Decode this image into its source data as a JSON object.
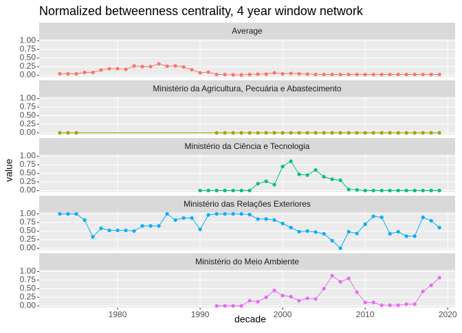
{
  "chart_data": {
    "type": "line",
    "title": "Normalized betweenness centrality, 4 year window network",
    "x_label": "decade",
    "y_label": "value",
    "xlim": [
      1970.5,
      2020.9
    ],
    "xticks": [
      1980,
      1990,
      2000,
      2010,
      2020
    ],
    "ylim": [
      -0.05,
      1.05
    ],
    "yticks": [
      {
        "value": 0,
        "label": "0.00"
      },
      {
        "value": 0.25,
        "label": "0.25"
      },
      {
        "value": 0.5,
        "label": "0.50"
      },
      {
        "value": 0.75,
        "label": "0.75"
      },
      {
        "value": 1,
        "label": "1.00"
      }
    ],
    "grid": true,
    "series": [
      {
        "name": "Average",
        "color": "#F8766D",
        "x": [
          1973,
          1974,
          1975,
          1976,
          1977,
          1978,
          1979,
          1980,
          1981,
          1982,
          1983,
          1984,
          1985,
          1986,
          1987,
          1988,
          1989,
          1990,
          1991,
          1992,
          1993,
          1994,
          1995,
          1996,
          1997,
          1998,
          1999,
          2000,
          2001,
          2002,
          2003,
          2004,
          2005,
          2006,
          2007,
          2008,
          2009,
          2010,
          2011,
          2012,
          2013,
          2014,
          2015,
          2016,
          2017,
          2018,
          2019
        ],
        "values": [
          0.04,
          0.04,
          0.04,
          0.08,
          0.08,
          0.15,
          0.19,
          0.19,
          0.17,
          0.27,
          0.25,
          0.25,
          0.33,
          0.26,
          0.27,
          0.24,
          0.16,
          0.07,
          0.09,
          0.02,
          0.02,
          0.01,
          0.01,
          0.02,
          0.03,
          0.03,
          0.07,
          0.04,
          0.05,
          0.04,
          0.03,
          0.02,
          0.02,
          0.02,
          0.02,
          0.02,
          0.02,
          0.02,
          0.02,
          0.02,
          0.02,
          0.02,
          0.02,
          0.02,
          0.02,
          0.02,
          0.02
        ]
      },
      {
        "name": "Ministério da Agricultura, Pecuária e Abastecimento",
        "color": "#A3A500",
        "x": [
          1973,
          1974,
          1975,
          1992,
          1993,
          1994,
          1995,
          1996,
          1997,
          1998,
          1999,
          2000,
          2001,
          2002,
          2003,
          2004,
          2005,
          2006,
          2007,
          2008,
          2009,
          2010,
          2011,
          2012,
          2013,
          2014,
          2015,
          2016,
          2017,
          2018,
          2019
        ],
        "values": [
          0,
          0,
          0,
          0,
          0,
          0,
          0,
          0,
          0,
          0,
          0,
          0,
          0,
          0,
          0,
          0,
          0,
          0,
          0,
          0,
          0,
          0,
          0,
          0,
          0,
          0,
          0,
          0,
          0,
          0,
          0
        ]
      },
      {
        "name": "Ministério da Ciência e Tecnologia",
        "color": "#00BF7D",
        "x": [
          1990,
          1991,
          1992,
          1993,
          1994,
          1995,
          1996,
          1997,
          1998,
          1999,
          2000,
          2001,
          2002,
          2003,
          2004,
          2005,
          2006,
          2007,
          2008,
          2009,
          2010,
          2011,
          2012,
          2013,
          2014,
          2015,
          2016,
          2017,
          2018,
          2019
        ],
        "values": [
          0,
          0,
          0,
          0,
          0,
          0,
          0,
          0.2,
          0.27,
          0.17,
          0.7,
          0.85,
          0.47,
          0.45,
          0.6,
          0.4,
          0.33,
          0.3,
          0.03,
          0.02,
          0,
          0,
          0,
          0,
          0,
          0,
          0,
          0,
          0,
          0
        ]
      },
      {
        "name": "Ministério das Relações Exteriores",
        "color": "#00B0F6",
        "x": [
          1973,
          1974,
          1975,
          1976,
          1977,
          1978,
          1979,
          1980,
          1981,
          1982,
          1983,
          1984,
          1985,
          1986,
          1987,
          1988,
          1989,
          1990,
          1991,
          1992,
          1993,
          1994,
          1995,
          1996,
          1997,
          1998,
          1999,
          2000,
          2001,
          2002,
          2003,
          2004,
          2005,
          2006,
          2007,
          2008,
          2009,
          2010,
          2011,
          2012,
          2013,
          2014,
          2015,
          2016,
          2017,
          2018,
          2019
        ],
        "values": [
          1,
          1,
          1,
          0.82,
          0.33,
          0.58,
          0.52,
          0.52,
          0.52,
          0.5,
          0.65,
          0.65,
          0.65,
          1,
          0.82,
          0.88,
          0.88,
          0.55,
          0.97,
          1,
          1,
          1,
          1,
          0.98,
          0.85,
          0.85,
          0.82,
          0.72,
          0.6,
          0.48,
          0.5,
          0.47,
          0.42,
          0.22,
          0,
          0.48,
          0.43,
          0.7,
          0.93,
          0.9,
          0.42,
          0.48,
          0.35,
          0.35,
          0.9,
          0.8,
          0.6
        ]
      },
      {
        "name": "Ministério do Meio Ambiente",
        "color": "#E76BF3",
        "x": [
          1992,
          1993,
          1994,
          1995,
          1996,
          1997,
          1998,
          1999,
          2000,
          2001,
          2002,
          2003,
          2004,
          2005,
          2006,
          2007,
          2008,
          2009,
          2010,
          2011,
          2012,
          2013,
          2014,
          2015,
          2016,
          2017,
          2018,
          2019
        ],
        "values": [
          0,
          0,
          0,
          0,
          0.15,
          0.12,
          0.25,
          0.45,
          0.3,
          0.27,
          0.15,
          0.22,
          0.2,
          0.5,
          0.88,
          0.7,
          0.8,
          0.4,
          0.1,
          0.1,
          0.02,
          0.02,
          0.02,
          0.05,
          0.05,
          0.42,
          0.6,
          0.82
        ]
      }
    ]
  }
}
